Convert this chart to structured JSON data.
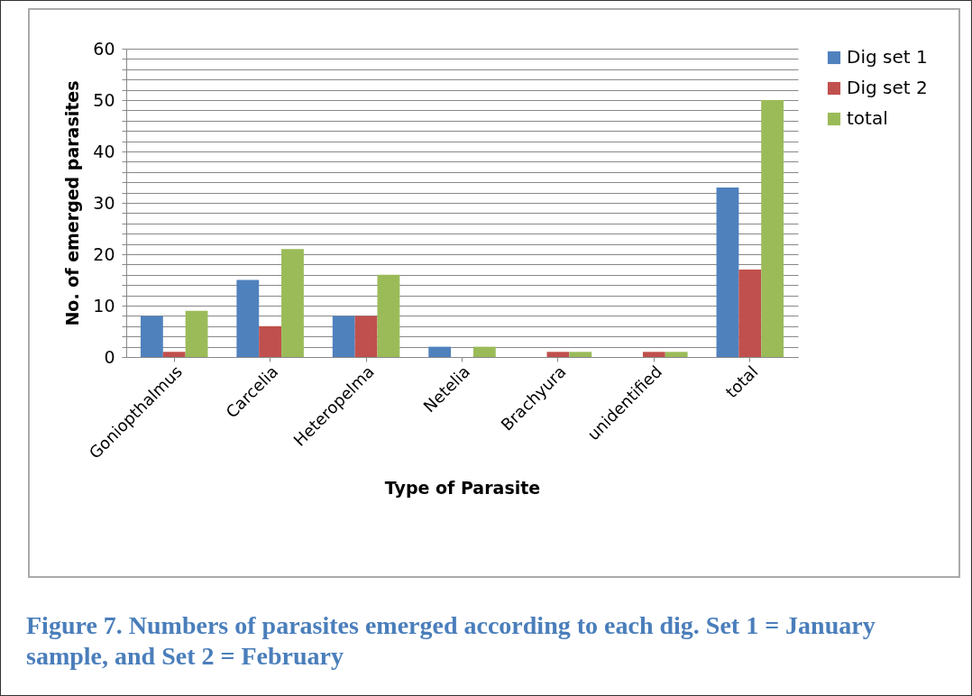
{
  "chart_data": {
    "type": "bar",
    "xlabel": "Type of Parasite",
    "ylabel": "No. of emerged parasites",
    "categories": [
      "Goniopthalmus",
      "Carcelia",
      "Heteropelma",
      "Netelia",
      "Brachyura",
      "unidentified",
      "total"
    ],
    "series": [
      {
        "name": "Dig set 1",
        "color": "#4f81bd",
        "values": [
          8,
          15,
          8,
          2,
          0,
          0,
          33
        ]
      },
      {
        "name": "Dig set 2",
        "color": "#c0504d",
        "values": [
          1,
          6,
          8,
          0,
          1,
          1,
          17
        ]
      },
      {
        "name": "total",
        "color": "#9bbb59",
        "values": [
          9,
          21,
          16,
          2,
          1,
          1,
          50
        ]
      }
    ],
    "ylim": [
      0,
      60
    ],
    "yticks": [
      0,
      {
        "value": 2,
        "label": null
      },
      {
        "value": 4,
        "label": null
      },
      {
        "value": 6,
        "label": null
      },
      {
        "value": 8,
        "label": null
      },
      10,
      {
        "value": 12,
        "label": null
      },
      {
        "value": 14,
        "label": null
      },
      {
        "value": 16,
        "label": null
      },
      {
        "value": 18,
        "label": null
      },
      20,
      {
        "value": 22,
        "label": null
      },
      {
        "value": 24,
        "label": null
      },
      {
        "value": 26,
        "label": null
      },
      {
        "value": 28,
        "label": null
      },
      30,
      {
        "value": 32,
        "label": null
      },
      {
        "value": 34,
        "label": null
      },
      {
        "value": 36,
        "label": null
      },
      {
        "value": 38,
        "label": null
      },
      40,
      {
        "value": 42,
        "label": null
      },
      {
        "value": 44,
        "label": null
      },
      {
        "value": 46,
        "label": null
      },
      {
        "value": 48,
        "label": null
      },
      50,
      {
        "value": 52,
        "label": null
      },
      {
        "value": 54,
        "label": null
      },
      {
        "value": 56,
        "label": null
      },
      {
        "value": 58,
        "label": null
      },
      60
    ],
    "grid": "y",
    "legend": "right",
    "annotations": [
      "Figure 7. Numbers of parasites emerged according to each dig. Set 1 = January sample, and Set 2 = February"
    ]
  }
}
